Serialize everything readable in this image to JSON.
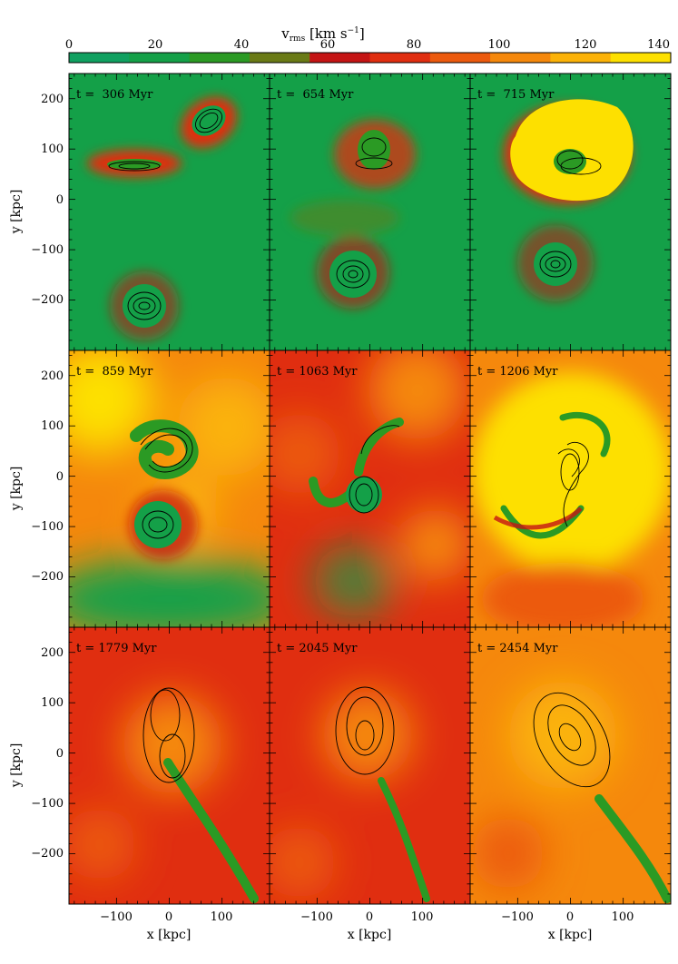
{
  "colorbar": {
    "label_main": "v",
    "label_sub": "rms",
    "label_units": " [km s",
    "label_exp": "−1",
    "label_close": "]",
    "ticks": [
      "0",
      "20",
      "40",
      "60",
      "80",
      "100",
      "120",
      "140"
    ],
    "range": [
      0,
      140
    ],
    "colors": [
      "#10a060",
      "#14a048",
      "#2b9a24",
      "#6a7a16",
      "#c41414",
      "#e02e10",
      "#ec5a0e",
      "#f5880c",
      "#fbb208",
      "#fde000"
    ]
  },
  "axes": {
    "xlabel": "x [kpc]",
    "ylabel": "y [kpc]",
    "xticks": [
      "−100",
      "0",
      "100"
    ],
    "yticks": [
      "200",
      "100",
      "0",
      "−100",
      "−200"
    ],
    "xlim": [
      -190,
      190
    ],
    "ylim": [
      -300,
      250
    ]
  },
  "chart_data": {
    "type": "heatmap",
    "quantity": "v_rms",
    "units": "km s^-1",
    "grid": "3x3",
    "panels": [
      {
        "time": "t =  306 Myr",
        "value_t_myr": 306
      },
      {
        "time": "t =  654 Myr",
        "value_t_myr": 654
      },
      {
        "time": "t =  715 Myr",
        "value_t_myr": 715
      },
      {
        "time": "t =  859 Myr",
        "value_t_myr": 859
      },
      {
        "time": "t = 1063 Myr",
        "value_t_myr": 1063
      },
      {
        "time": "t = 1206 Myr",
        "value_t_myr": 1206
      },
      {
        "time": "t = 1779 Myr",
        "value_t_myr": 1779
      },
      {
        "time": "t = 2045 Myr",
        "value_t_myr": 2045
      },
      {
        "time": "t = 2454 Myr",
        "value_t_myr": 2454
      }
    ]
  }
}
